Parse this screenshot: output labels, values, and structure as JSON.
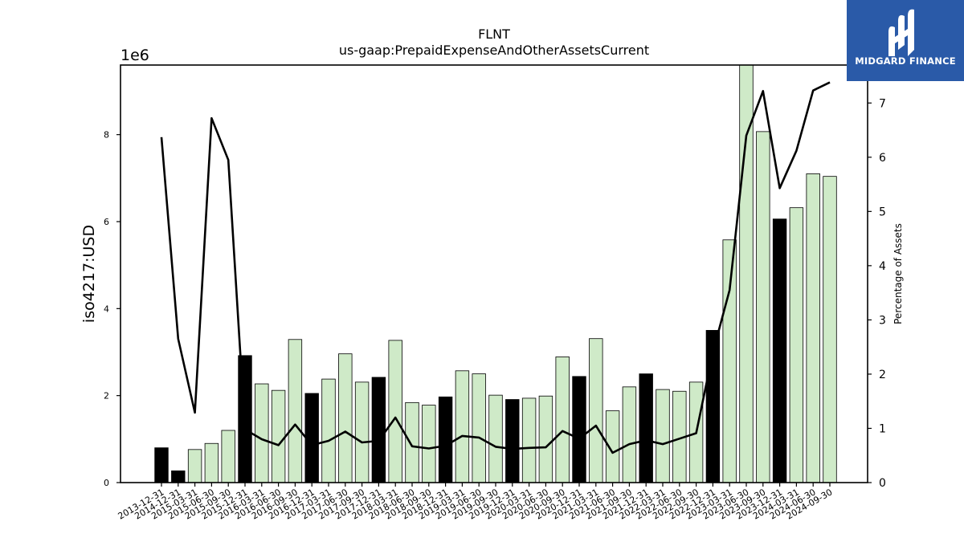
{
  "chart_data": {
    "type": "bar",
    "title": "FLNT",
    "subtitle": "us-gaap:PrepaidExpenseAndOtherAssetsCurrent",
    "ylabel": "iso4217:USD",
    "y2label": "Percentage of Assets",
    "yscale_label": "1e6",
    "ylim": [
      0,
      9600000
    ],
    "y2lim": [
      0,
      7.7
    ],
    "yticks": [
      0,
      2,
      4,
      6,
      8
    ],
    "y2ticks": [
      0,
      1,
      2,
      3,
      4,
      5,
      6,
      7
    ],
    "colors": {
      "quarterly": "#cfeac8",
      "annual": "#000000",
      "line": "#000000",
      "edge": "#000000"
    },
    "categories": [
      "2013-12-31",
      "2014-12-31",
      "2015-03-31",
      "2015-06-30",
      "2015-09-30",
      "2015-12-31",
      "2016-03-31",
      "2016-06-30",
      "2016-09-30",
      "2016-12-31",
      "2017-03-31",
      "2017-06-30",
      "2017-09-30",
      "2017-12-31",
      "2018-03-31",
      "2018-06-30",
      "2018-09-30",
      "2018-12-31",
      "2019-03-31",
      "2019-06-30",
      "2019-09-30",
      "2019-12-31",
      "2020-03-31",
      "2020-06-30",
      "2020-09-30",
      "2020-12-31",
      "2021-03-31",
      "2021-06-30",
      "2021-09-30",
      "2021-12-31",
      "2022-03-31",
      "2022-06-30",
      "2022-09-30",
      "2022-12-31",
      "2023-03-31",
      "2023-06-30",
      "2023-09-30",
      "2023-12-31",
      "2024-03-31",
      "2024-06-30",
      "2024-09-30"
    ],
    "values": [
      800000,
      270000,
      760000,
      900000,
      1200000,
      2920000,
      2270000,
      2120000,
      3290000,
      2050000,
      2380000,
      2960000,
      2310000,
      2420000,
      3270000,
      1840000,
      1780000,
      1970000,
      2570000,
      2500000,
      2010000,
      1910000,
      1940000,
      1990000,
      2890000,
      2440000,
      3310000,
      1650000,
      2200000,
      2500000,
      2140000,
      2100000,
      2310000,
      3500000,
      5580000,
      9600000,
      8070000,
      6060000,
      6320000,
      7100000,
      7040000
    ],
    "annual": [
      true,
      true,
      false,
      false,
      false,
      true,
      false,
      false,
      false,
      true,
      false,
      false,
      false,
      true,
      false,
      false,
      false,
      true,
      false,
      false,
      false,
      true,
      false,
      false,
      false,
      true,
      false,
      false,
      false,
      true,
      false,
      false,
      false,
      true,
      false,
      false,
      false,
      true,
      false,
      false,
      false
    ],
    "pct_of_assets": [
      6.37,
      2.65,
      1.29,
      6.72,
      5.95,
      0.98,
      0.8,
      0.69,
      1.07,
      0.69,
      0.77,
      0.94,
      0.74,
      0.77,
      1.2,
      0.67,
      0.63,
      0.68,
      0.86,
      0.83,
      0.66,
      0.62,
      0.64,
      0.65,
      0.95,
      0.81,
      1.05,
      0.55,
      0.71,
      0.78,
      0.71,
      0.81,
      0.91,
      2.4,
      3.55,
      6.4,
      7.22,
      5.43,
      6.12,
      7.23,
      7.38
    ]
  },
  "brand": {
    "name": "MIDGARD FINANCE",
    "logo_icon": "midgard-m-logo-icon",
    "color": "#2a5aa8"
  }
}
